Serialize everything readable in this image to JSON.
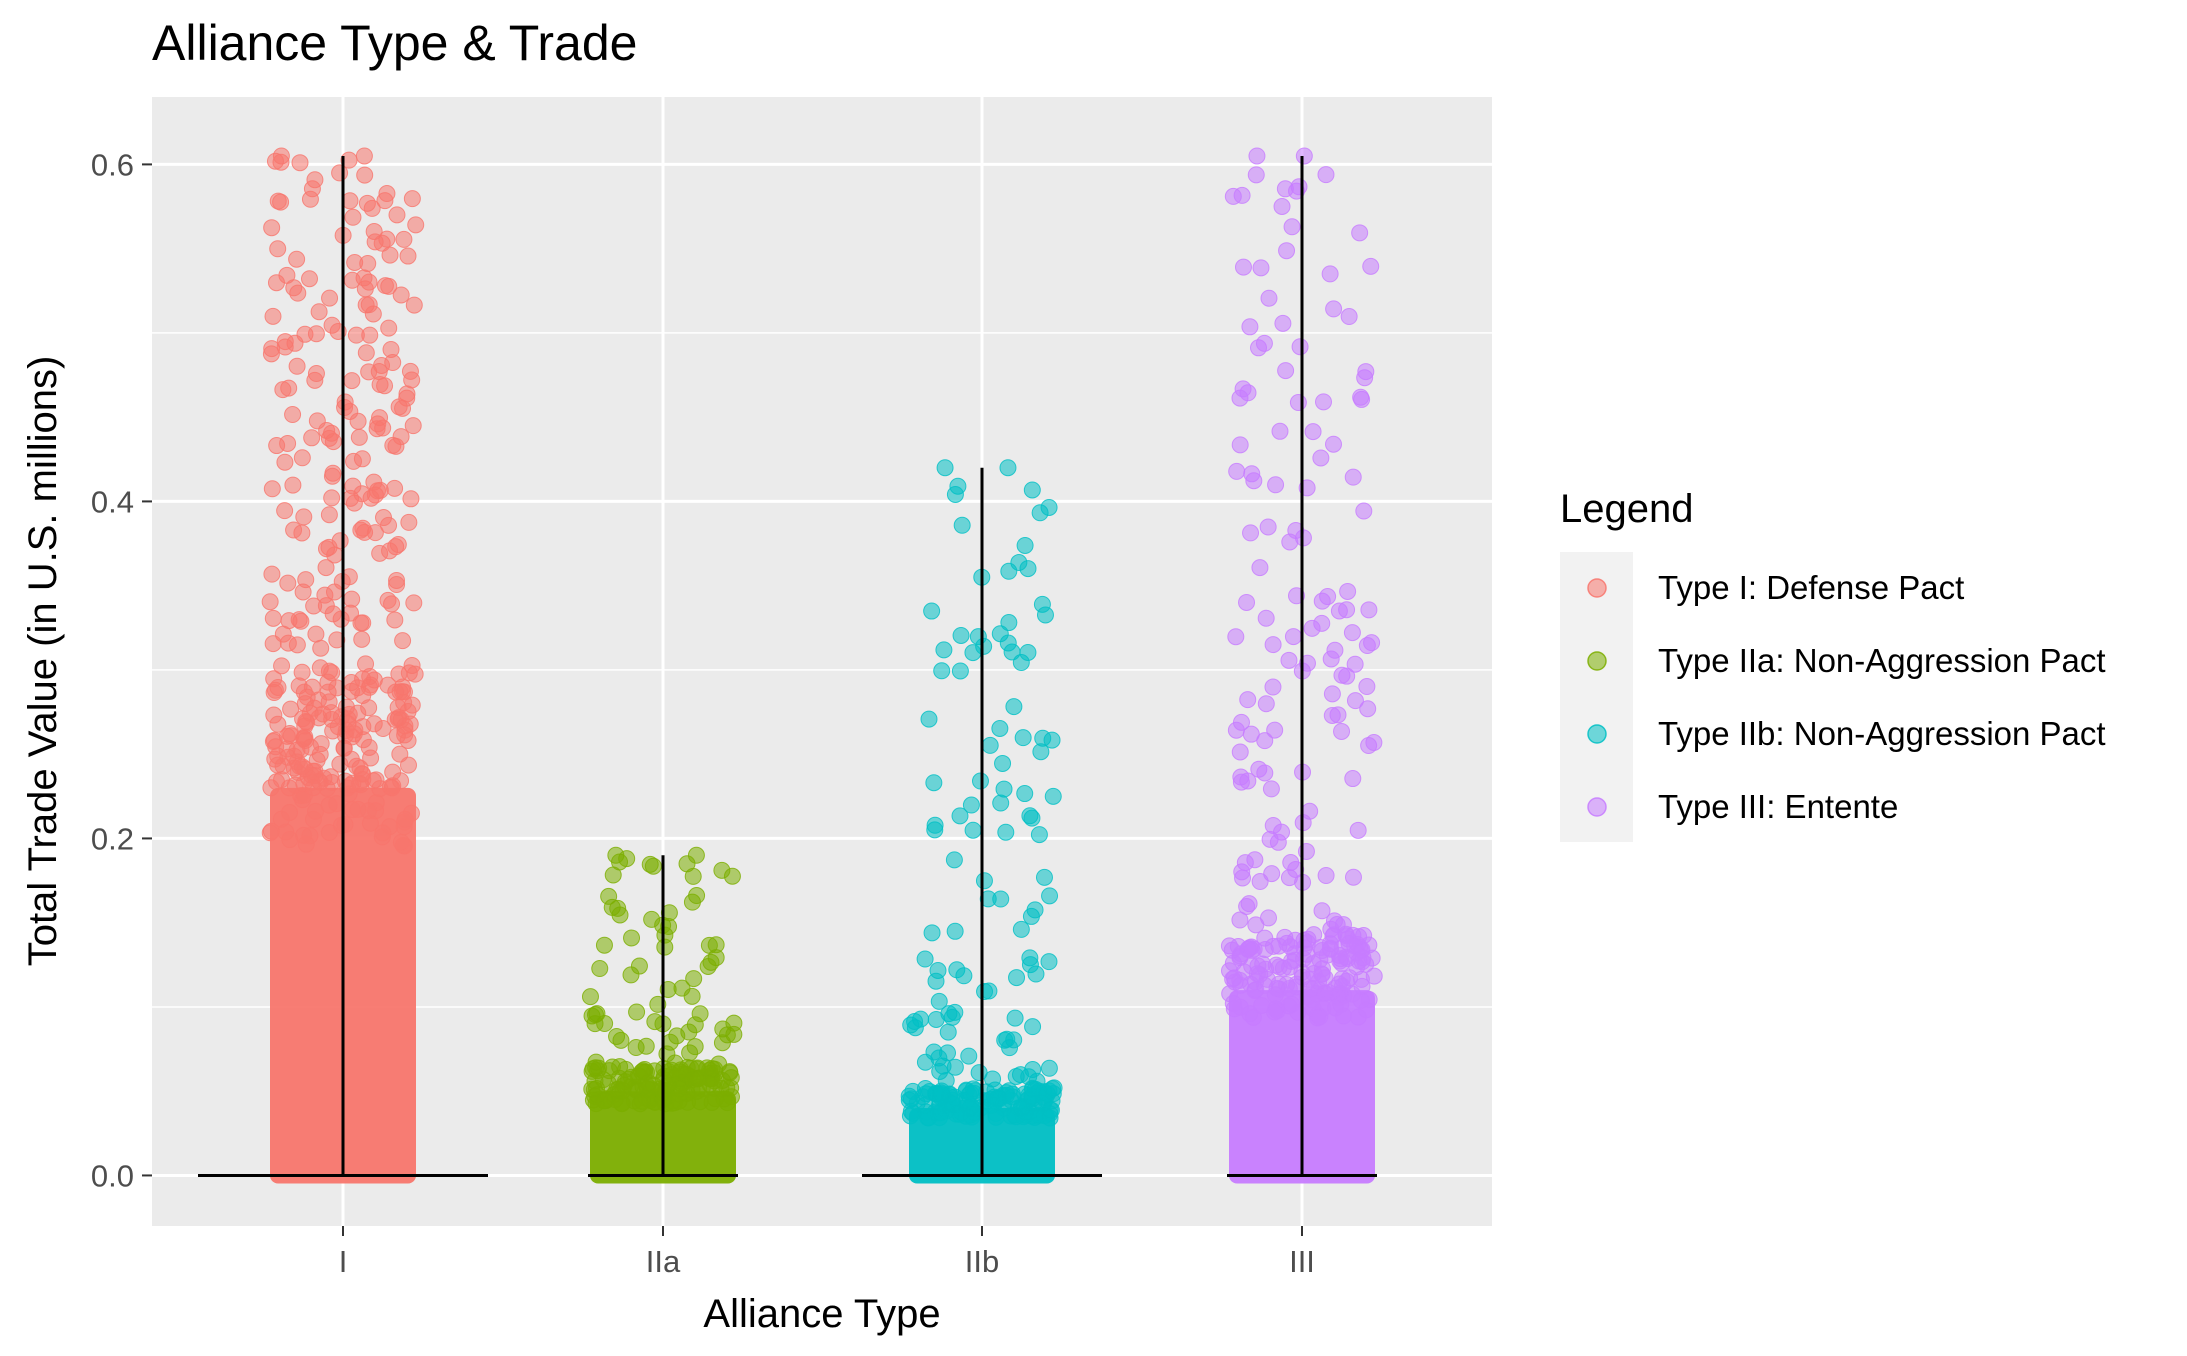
{
  "chart_data": {
    "type": "scatter",
    "subtype": "violin-jitter",
    "title": "Alliance Type & Trade",
    "xlabel": "Alliance Type",
    "ylabel": "Total Trade Value (in U.S. millions)",
    "categories": [
      "I",
      "IIa",
      "IIb",
      "III"
    ],
    "ylim": [
      -0.03,
      0.64
    ],
    "yticks": [
      0.0,
      0.2,
      0.4,
      0.6
    ],
    "ytick_labels": [
      "0.0",
      "0.2",
      "0.4",
      "0.6"
    ],
    "grid": true,
    "legend": {
      "title": "Legend",
      "position": "right"
    },
    "series": [
      {
        "name": "Type I: Defense Pact",
        "category": "I",
        "color": "#F8766D",
        "max": 0.605,
        "dense_upto": 0.23,
        "sparse_points": 260
      },
      {
        "name": "Type IIa: Non-Aggression Pact",
        "category": "IIa",
        "color": "#7CAE00",
        "max": 0.19,
        "dense_upto": 0.05,
        "sparse_points": 90
      },
      {
        "name": "Type IIb: Non-Aggression Pact",
        "category": "IIb",
        "color": "#00BFC4",
        "max": 0.42,
        "dense_upto": 0.04,
        "sparse_points": 120
      },
      {
        "name": "Type III: Entente",
        "category": "III",
        "color": "#C77CFF",
        "max": 0.605,
        "dense_upto": 0.11,
        "sparse_points": 170
      }
    ]
  }
}
